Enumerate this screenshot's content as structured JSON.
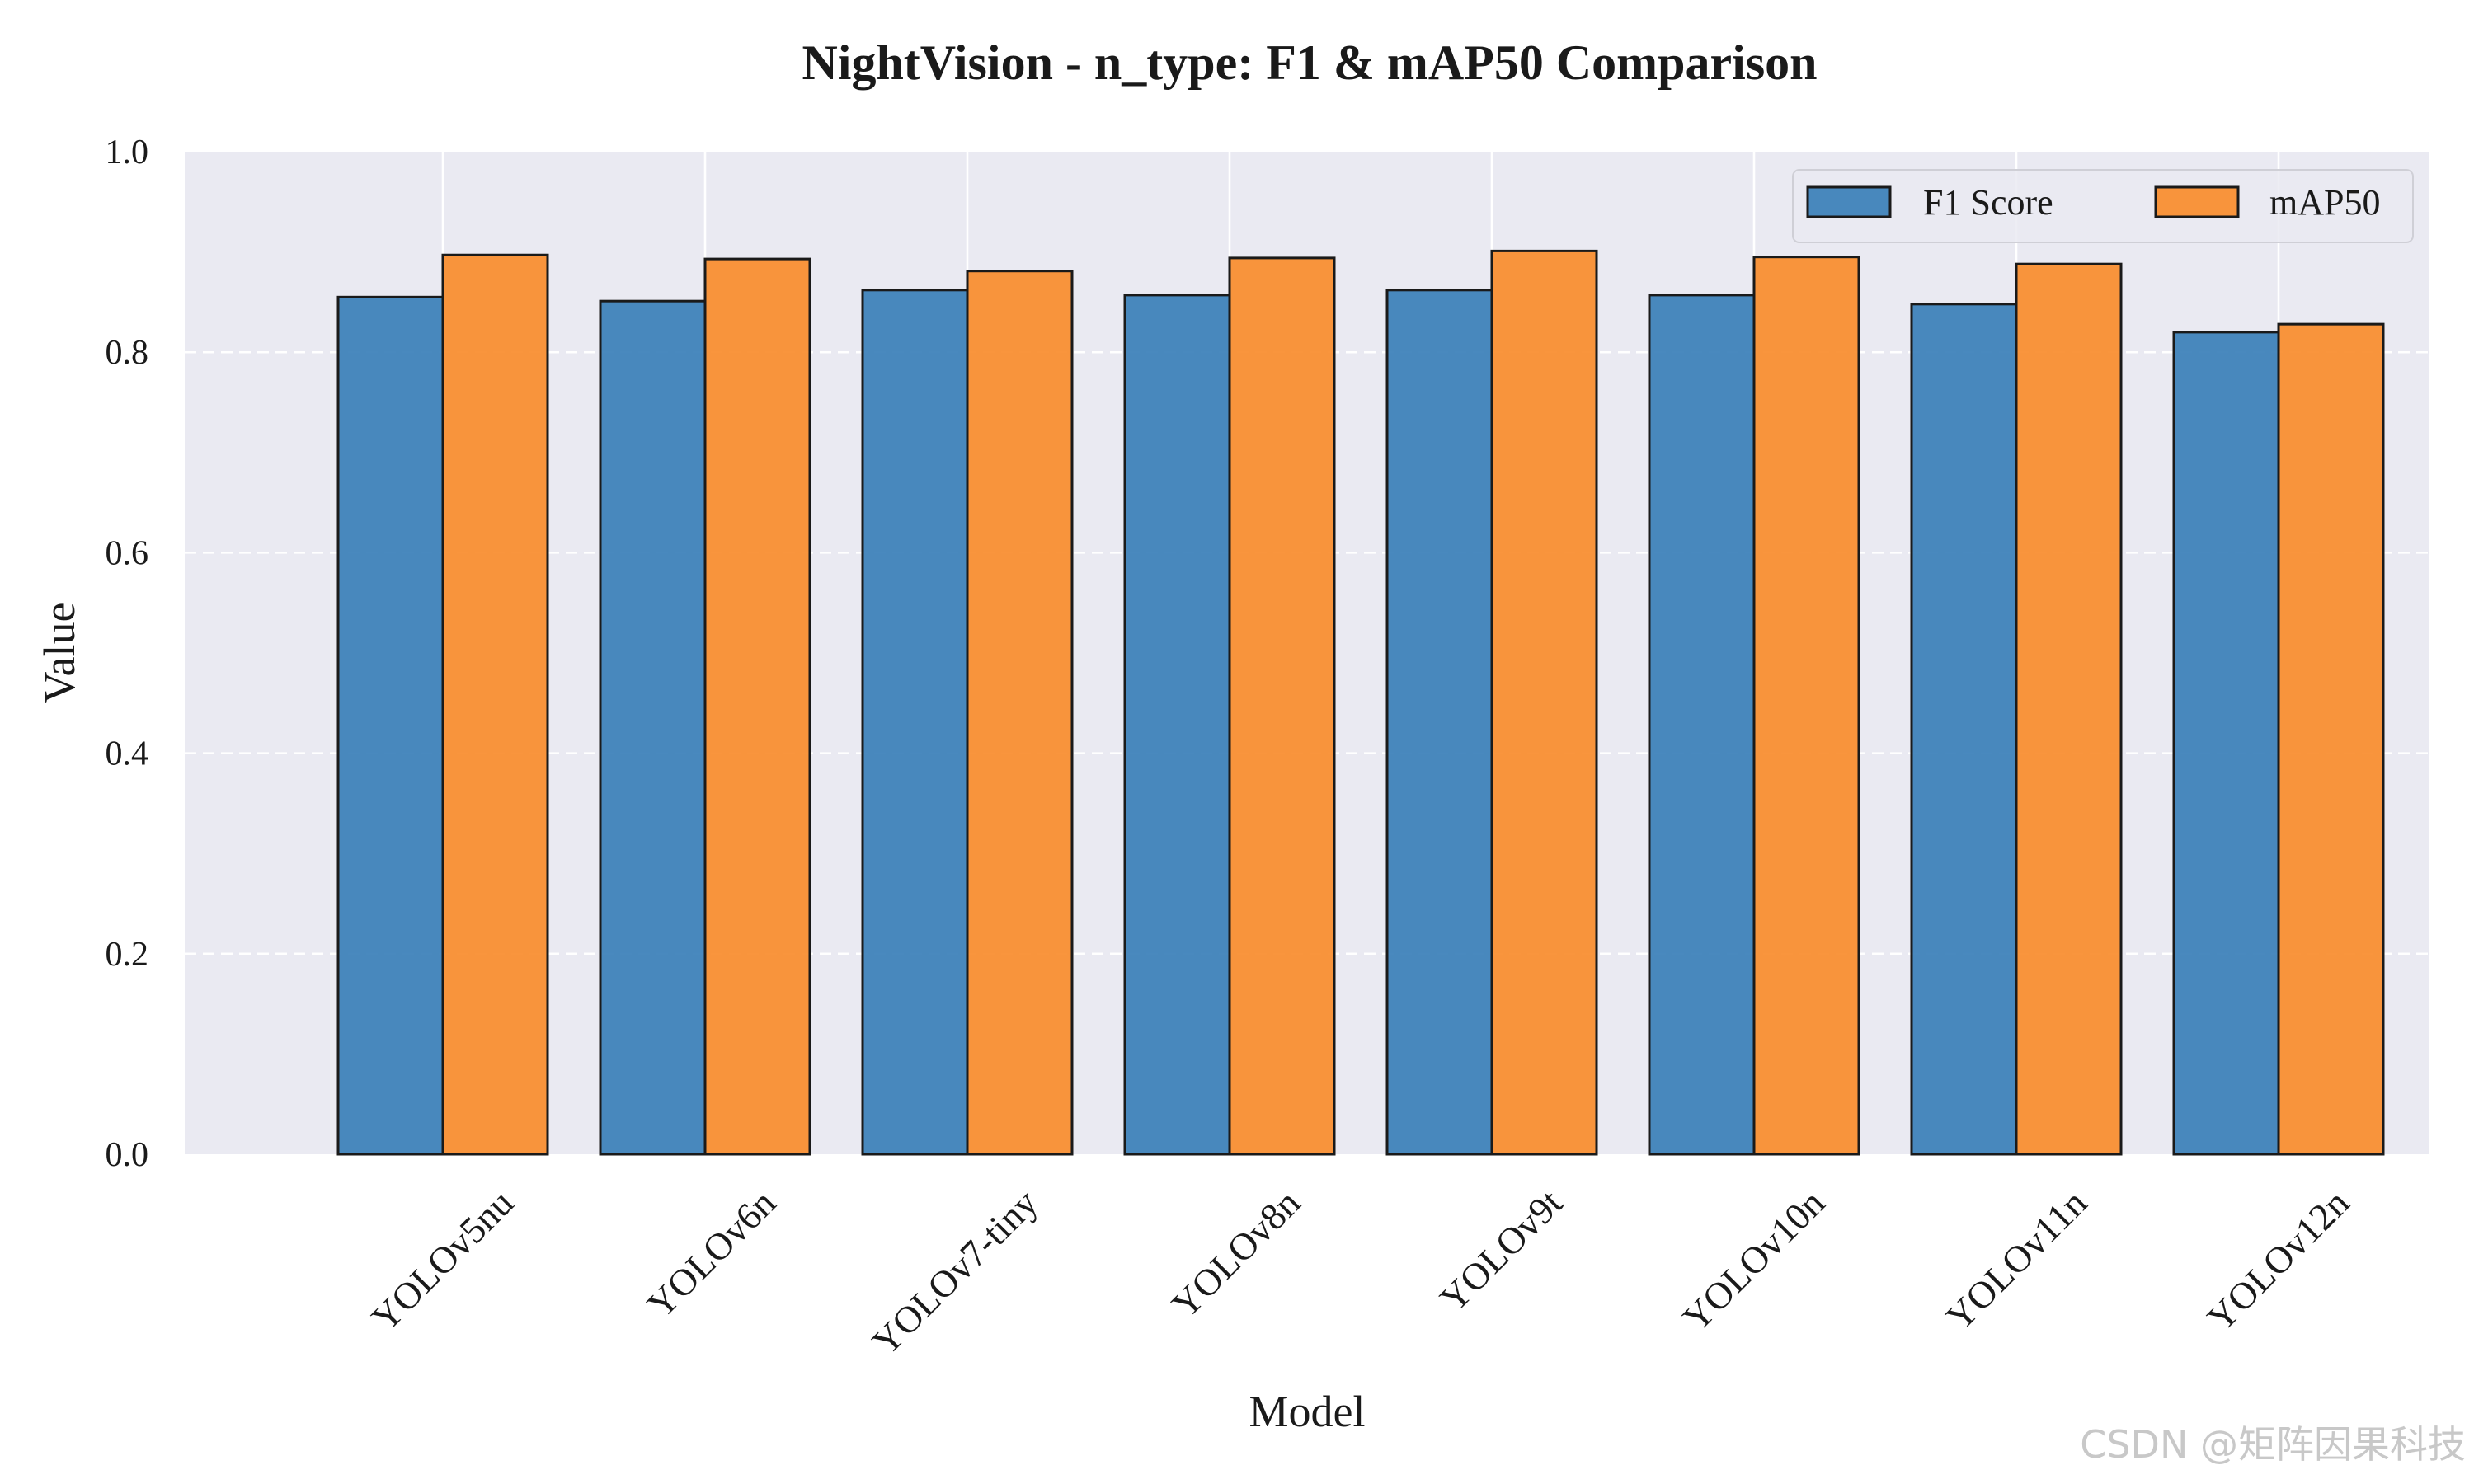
{
  "chart_data": {
    "type": "bar",
    "title": "NightVision - n_type: F1 & mAP50 Comparison",
    "xlabel": "Model",
    "ylabel": "Value",
    "ylim": [
      0,
      1.0
    ],
    "yticks": [
      "0.0",
      "0.2",
      "0.4",
      "0.6",
      "0.8",
      "1.0"
    ],
    "grid": true,
    "legend_position": "top-right",
    "categories": [
      "YOLOv5nu",
      "YOLOv6n",
      "YOLOv7-tiny",
      "YOLOv8n",
      "YOLOv9t",
      "YOLOv10n",
      "YOLOv11n",
      "YOLOv12n"
    ],
    "series": [
      {
        "name": "F1 Score",
        "color": "#3a7fb8",
        "values": [
          0.855,
          0.851,
          0.862,
          0.857,
          0.862,
          0.857,
          0.848,
          0.82
        ]
      },
      {
        "name": "mAP50",
        "color": "#f88c2c",
        "values": [
          0.897,
          0.893,
          0.881,
          0.894,
          0.901,
          0.895,
          0.888,
          0.828
        ]
      }
    ]
  },
  "watermark": "CSDN @矩阵因果科技"
}
